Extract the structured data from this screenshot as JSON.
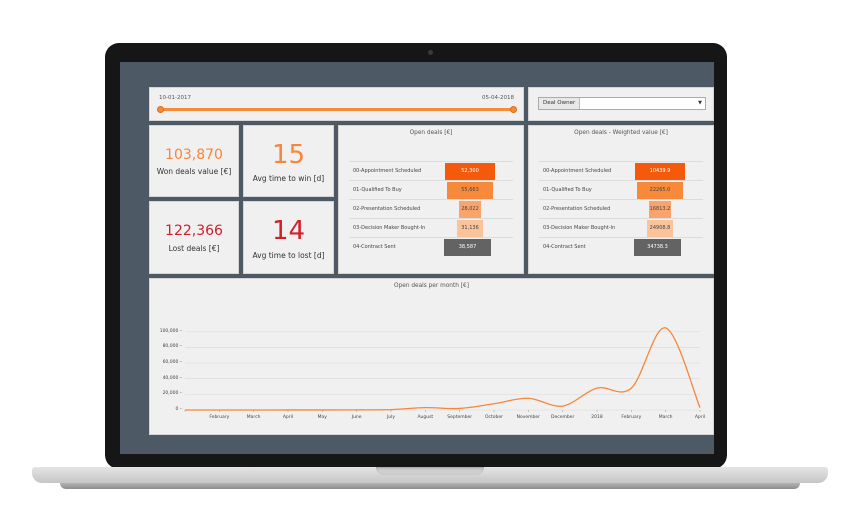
{
  "theme": {
    "accent": "#f7863a",
    "screen_bg": "#4d5a66",
    "panel_bg": "#f0f0f0",
    "loss_red": "#d0202a",
    "funnel_gray": "#636363"
  },
  "date_range": {
    "start": "10-01-2017",
    "end": "05-04-2018"
  },
  "filter": {
    "label": "Deal Owner",
    "value": ""
  },
  "kpis": {
    "won_value": "103,870",
    "won_label": "Won deals value [€]",
    "avg_win": "15",
    "avg_win_label": "Avg time to win [d]",
    "lost_value": "122,366",
    "lost_label": "Lost deals [€]",
    "avg_lost": "14",
    "avg_lost_label": "Avg time to lost [d]"
  },
  "open_deals": {
    "title": "Open deals [€]",
    "stages": [
      {
        "label": "00-Appointment Scheduled",
        "value": "52,300",
        "color": "#f55a0c"
      },
      {
        "label": "01-Qualified To Buy",
        "value": "55,663",
        "color": "#f78a3a"
      },
      {
        "label": "02-Presentation Scheduled",
        "value": "28,022",
        "color": "#f9a46c"
      },
      {
        "label": "03-Decision Maker Bought-In",
        "value": "31,136",
        "color": "#fbc39a"
      },
      {
        "label": "04-Contract Sent",
        "value": "38,587",
        "color": "#636363"
      }
    ]
  },
  "weighted": {
    "title": "Open deals - Weighted value [€]",
    "stages": [
      {
        "label": "00-Appointment Scheduled",
        "value": "10439.9",
        "color": "#f55a0c"
      },
      {
        "label": "01-Qualified To Buy",
        "value": "22265.0",
        "color": "#f78a3a"
      },
      {
        "label": "02-Presentation Scheduled",
        "value": "16813.2",
        "color": "#f9a46c"
      },
      {
        "label": "03-Decision Maker Bought-In",
        "value": "24908.8",
        "color": "#fbc39a"
      },
      {
        "label": "04-Contract Sent",
        "value": "34738.3",
        "color": "#636363"
      }
    ]
  },
  "chart_data": {
    "type": "line",
    "title": "Open deals per month [€]",
    "categories": [
      "",
      "February",
      "March",
      "April",
      "May",
      "June",
      "July",
      "August",
      "September",
      "October",
      "November",
      "December",
      "2018",
      "February",
      "March",
      "April"
    ],
    "series": [
      {
        "values": [
          0,
          0,
          0,
          100,
          100,
          200,
          500,
          3000,
          2000,
          8000,
          15000,
          5000,
          28000,
          28000,
          105000,
          3000
        ]
      }
    ],
    "yticks": [
      "100,000 –",
      "80,000 –",
      "60,000 –",
      "40,000 –",
      "20,000 –",
      "0 –"
    ],
    "ylim": [
      0,
      110000
    ],
    "grid": true,
    "color": "#f7863a"
  }
}
